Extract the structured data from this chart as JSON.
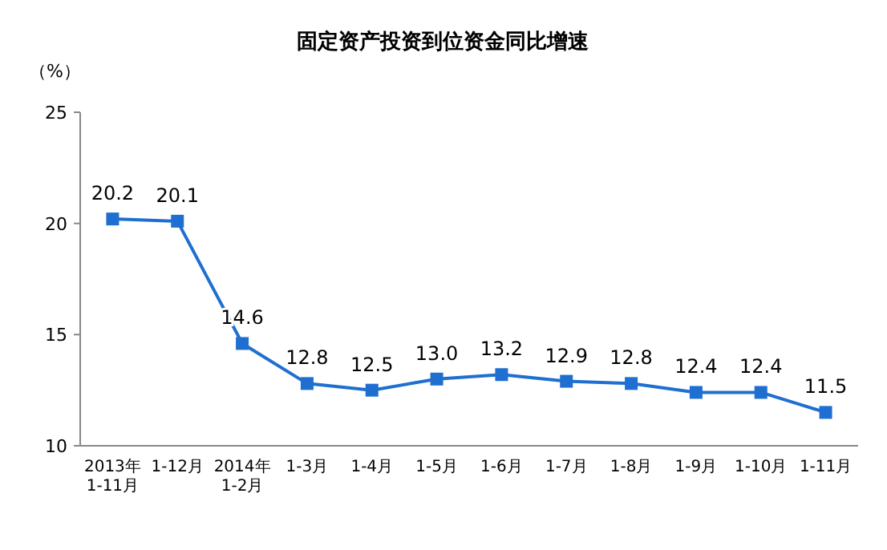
{
  "chart_data": {
    "type": "line",
    "title": "固定资产投资到位资金同比增速",
    "ylabel": "（%）",
    "categories": [
      "2013年\n1-11月",
      "1-12月",
      "2014年\n1-2月",
      "1-3月",
      "1-4月",
      "1-5月",
      "1-6月",
      "1-7月",
      "1-8月",
      "1-9月",
      "1-10月",
      "1-11月"
    ],
    "series": [
      {
        "color": "#1f6fd0",
        "values": [
          20.2,
          20.1,
          14.6,
          12.8,
          12.5,
          13.0,
          13.2,
          12.9,
          12.8,
          12.4,
          12.4,
          11.5
        ],
        "value_labels": [
          "20.2",
          "20.1",
          "14.6",
          "12.8",
          "12.5",
          "13.0",
          "13.2",
          "12.9",
          "12.8",
          "12.4",
          "12.4",
          "11.5"
        ]
      }
    ],
    "ylim": [
      10,
      25
    ],
    "yticks": [
      10,
      15,
      20,
      25
    ],
    "grid": false,
    "marker": "square",
    "line_style": "solid"
  }
}
